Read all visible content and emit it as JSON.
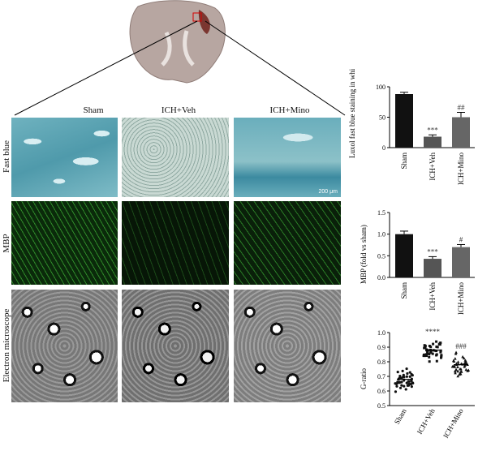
{
  "figure": {
    "columns": [
      "Sham",
      "ICH+Veh",
      "ICH+Mino"
    ],
    "rows": [
      "Fast blue",
      "MBP",
      "Electron microscope"
    ],
    "scale_bar": "200 μm"
  },
  "colors": {
    "bar_black": "#111111",
    "bar_dark": "#555555",
    "bar_gray": "#666666"
  },
  "chart_data": [
    {
      "type": "bar",
      "ylabel": "Luxol fast blue staining in white matter (%)",
      "categories": [
        "Sham",
        "ICH+Veh",
        "ICH+Mino"
      ],
      "values": [
        88,
        18,
        50
      ],
      "errors": [
        3,
        3,
        8
      ],
      "ylim": [
        0,
        100
      ],
      "annotations": [
        "",
        "***",
        "##"
      ]
    },
    {
      "type": "bar",
      "ylabel": "MBP (fold vs sham)",
      "categories": [
        "Sham",
        "ICH+Veh",
        "ICH+Mino"
      ],
      "values": [
        1.0,
        0.43,
        0.7
      ],
      "errors": [
        0.07,
        0.05,
        0.06
      ],
      "ylim": [
        0,
        1.5
      ],
      "yticks": [
        "0.0",
        "0.5",
        "1.0",
        "1.5"
      ],
      "annotations": [
        "",
        "***",
        "#"
      ]
    },
    {
      "type": "scatter",
      "ylabel": "G-ratio",
      "categories": [
        "Sham",
        "ICH+Veh",
        "ICH+Mino"
      ],
      "means": [
        0.68,
        0.88,
        0.78
      ],
      "ylim": [
        0.5,
        1.0
      ],
      "yticks": [
        "0.5",
        "0.6",
        "0.7",
        "0.8",
        "0.9",
        "1.0"
      ],
      "annotations": [
        "",
        "****",
        "###"
      ]
    }
  ]
}
